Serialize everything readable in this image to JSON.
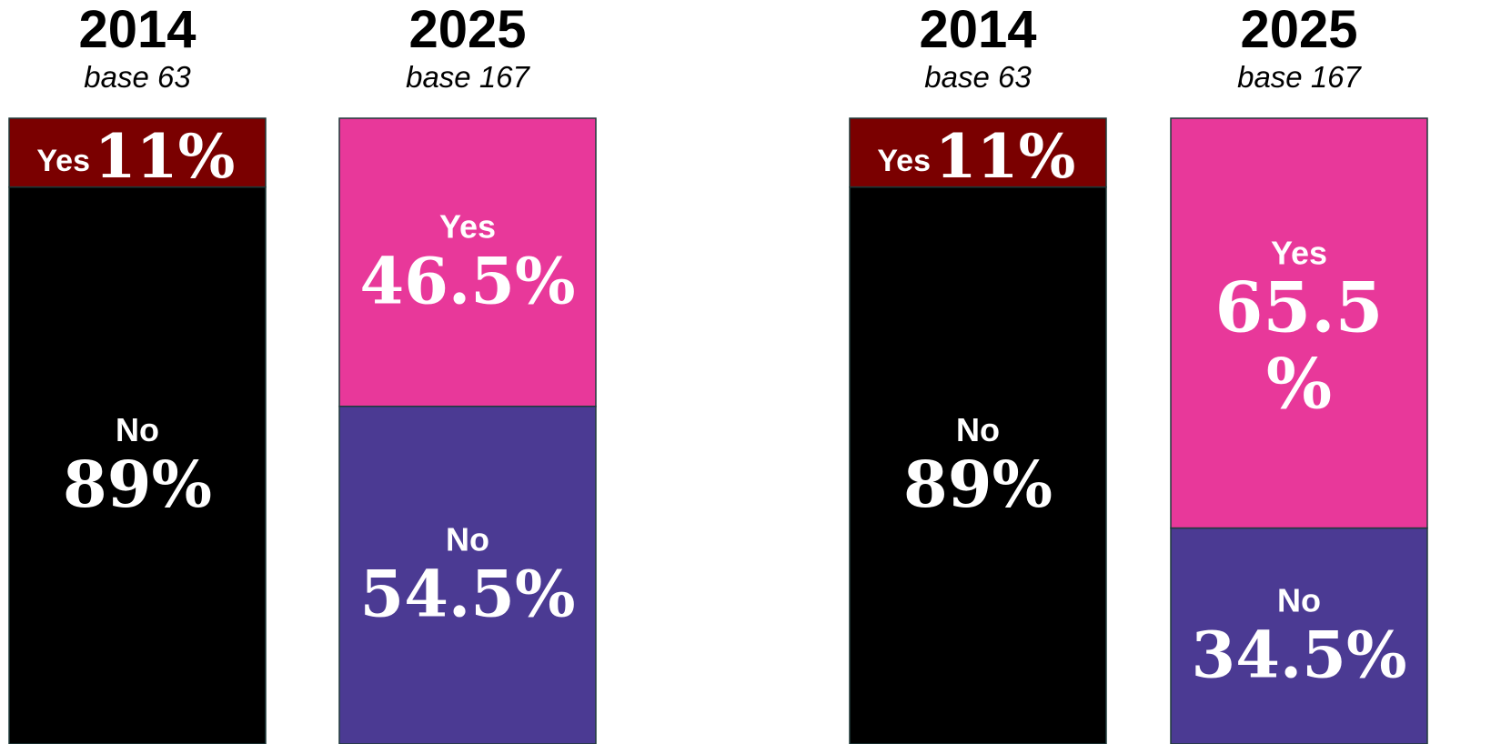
{
  "chart_data": [
    {
      "type": "bar",
      "stacked": true,
      "categories": [
        "2014",
        "2025"
      ],
      "category_notes": [
        "base 63",
        "base 167"
      ],
      "series": [
        {
          "name": "Yes",
          "values": [
            11,
            46.5
          ],
          "value_labels": [
            "11%",
            "46.5%"
          ],
          "colors": [
            "#7a0000",
            "#e8389a"
          ]
        },
        {
          "name": "No",
          "values": [
            89,
            54.5
          ],
          "value_labels": [
            "89%",
            "54.5%"
          ],
          "colors": [
            "#000000",
            "#4b3a93"
          ]
        }
      ]
    },
    {
      "type": "bar",
      "stacked": true,
      "categories": [
        "2014",
        "2025"
      ],
      "category_notes": [
        "base 63",
        "base 167"
      ],
      "series": [
        {
          "name": "Yes",
          "values": [
            11,
            65.5
          ],
          "value_labels": [
            "11%",
            "65.5\n%"
          ],
          "colors": [
            "#7a0000",
            "#e8389a"
          ]
        },
        {
          "name": "No",
          "values": [
            89,
            34.5
          ],
          "value_labels": [
            "89%",
            "34.5%"
          ],
          "colors": [
            "#000000",
            "#4b3a93"
          ]
        }
      ]
    }
  ]
}
